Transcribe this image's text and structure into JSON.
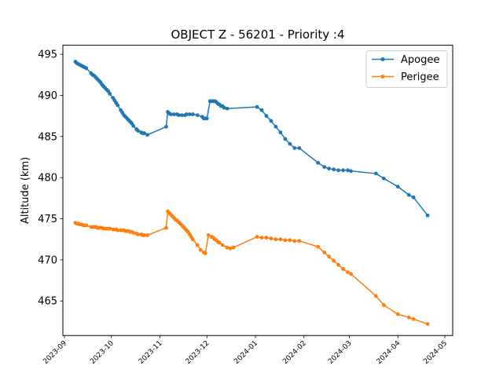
{
  "chart_data": {
    "type": "line",
    "title": "OBJECT Z - 56201 - Priority :4",
    "xlabel": "",
    "ylabel": "Altitude (km)",
    "xlim": [
      "2023-08-31",
      "2024-05-06"
    ],
    "ylim": [
      460.8,
      496.1
    ],
    "grid": false,
    "legend_position": "top-right",
    "x_ticks": [
      "2023-09",
      "2023-10",
      "2023-11",
      "2023-12",
      "2024-01",
      "2024-02",
      "2024-03",
      "2024-04",
      "2024-05"
    ],
    "y_ticks": [
      465,
      470,
      475,
      480,
      485,
      490,
      495
    ],
    "series": [
      {
        "name": "Apogee",
        "color": "#1f77b4",
        "x": [
          "2023-09-08",
          "2023-09-09",
          "2023-09-10",
          "2023-09-11",
          "2023-09-12",
          "2023-09-13",
          "2023-09-14",
          "2023-09-15",
          "2023-09-18",
          "2023-09-19",
          "2023-09-20",
          "2023-09-21",
          "2023-09-22",
          "2023-09-23",
          "2023-09-24",
          "2023-09-25",
          "2023-09-26",
          "2023-09-27",
          "2023-09-28",
          "2023-09-29",
          "2023-09-30",
          "2023-10-02",
          "2023-10-03",
          "2023-10-04",
          "2023-10-05",
          "2023-10-07",
          "2023-10-08",
          "2023-10-09",
          "2023-10-10",
          "2023-10-11",
          "2023-10-12",
          "2023-10-13",
          "2023-10-14",
          "2023-10-15",
          "2023-10-17",
          "2023-10-18",
          "2023-10-20",
          "2023-10-21",
          "2023-10-22",
          "2023-10-24",
          "2023-11-05",
          "2023-11-06",
          "2023-11-07",
          "2023-11-08",
          "2023-11-10",
          "2023-11-12",
          "2023-11-13",
          "2023-11-15",
          "2023-11-17",
          "2023-11-18",
          "2023-11-20",
          "2023-11-22",
          "2023-11-25",
          "2023-11-28",
          "2023-11-29",
          "2023-11-30",
          "2023-12-01",
          "2023-12-03",
          "2023-12-04",
          "2023-12-05",
          "2023-12-06",
          "2023-12-07",
          "2023-12-08",
          "2023-12-09",
          "2023-12-10",
          "2023-12-11",
          "2023-12-12",
          "2023-12-14",
          "2024-01-02",
          "2024-01-05",
          "2024-01-08",
          "2024-01-11",
          "2024-01-14",
          "2024-01-17",
          "2024-01-20",
          "2024-01-23",
          "2024-01-26",
          "2024-01-29",
          "2024-02-10",
          "2024-02-14",
          "2024-02-17",
          "2024-02-20",
          "2024-02-23",
          "2024-02-26",
          "2024-02-29",
          "2024-03-02",
          "2024-03-18",
          "2024-03-23",
          "2024-04-01",
          "2024-04-08",
          "2024-04-11",
          "2024-04-20"
        ],
        "values": [
          494.1,
          493.9,
          493.8,
          493.7,
          493.6,
          493.5,
          493.4,
          493.3,
          492.7,
          492.5,
          492.4,
          492.2,
          492.0,
          491.8,
          491.6,
          491.3,
          491.1,
          490.9,
          490.7,
          490.5,
          490.2,
          489.7,
          489.4,
          489.1,
          488.8,
          488.2,
          487.9,
          487.6,
          487.4,
          487.2,
          487.0,
          486.8,
          486.6,
          486.3,
          485.9,
          485.7,
          485.5,
          485.4,
          485.4,
          485.2,
          486.2,
          488.0,
          487.8,
          487.7,
          487.7,
          487.7,
          487.6,
          487.6,
          487.6,
          487.7,
          487.7,
          487.7,
          487.6,
          487.4,
          487.2,
          487.2,
          487.2,
          489.3,
          489.3,
          489.3,
          489.3,
          489.2,
          489.0,
          488.9,
          488.7,
          488.7,
          488.5,
          488.4,
          488.6,
          488.2,
          487.5,
          486.9,
          486.2,
          485.5,
          484.7,
          484.1,
          483.6,
          483.6,
          481.8,
          481.3,
          481.1,
          481.0,
          480.9,
          480.9,
          480.9,
          480.8,
          480.5,
          479.9,
          478.9,
          477.9,
          477.6,
          475.4
        ]
      },
      {
        "name": "Perigee",
        "color": "#ff7f0e",
        "x": [
          "2023-09-08",
          "2023-09-09",
          "2023-09-10",
          "2023-09-11",
          "2023-09-12",
          "2023-09-13",
          "2023-09-14",
          "2023-09-15",
          "2023-09-18",
          "2023-09-19",
          "2023-09-20",
          "2023-09-21",
          "2023-09-22",
          "2023-09-23",
          "2023-09-24",
          "2023-09-25",
          "2023-09-26",
          "2023-09-27",
          "2023-09-28",
          "2023-09-29",
          "2023-09-30",
          "2023-10-02",
          "2023-10-03",
          "2023-10-04",
          "2023-10-05",
          "2023-10-07",
          "2023-10-08",
          "2023-10-09",
          "2023-10-10",
          "2023-10-11",
          "2023-10-12",
          "2023-10-13",
          "2023-10-14",
          "2023-10-15",
          "2023-10-17",
          "2023-10-18",
          "2023-10-20",
          "2023-10-21",
          "2023-10-22",
          "2023-10-24",
          "2023-11-05",
          "2023-11-06",
          "2023-11-07",
          "2023-11-08",
          "2023-11-09",
          "2023-11-10",
          "2023-11-11",
          "2023-11-12",
          "2023-11-13",
          "2023-11-14",
          "2023-11-15",
          "2023-11-16",
          "2023-11-17",
          "2023-11-18",
          "2023-11-19",
          "2023-11-20",
          "2023-11-21",
          "2023-11-22",
          "2023-11-25",
          "2023-11-27",
          "2023-11-29",
          "2023-11-30",
          "2023-12-02",
          "2023-12-04",
          "2023-12-05",
          "2023-12-06",
          "2023-12-07",
          "2023-12-08",
          "2023-12-09",
          "2023-12-11",
          "2023-12-14",
          "2023-12-16",
          "2023-12-18",
          "2024-01-02",
          "2024-01-05",
          "2024-01-08",
          "2024-01-11",
          "2024-01-14",
          "2024-01-17",
          "2024-01-20",
          "2024-01-23",
          "2024-01-26",
          "2024-01-29",
          "2024-02-10",
          "2024-02-14",
          "2024-02-17",
          "2024-02-20",
          "2024-02-23",
          "2024-02-26",
          "2024-02-29",
          "2024-03-02",
          "2024-03-18",
          "2024-03-23",
          "2024-04-01",
          "2024-04-08",
          "2024-04-11",
          "2024-04-20"
        ],
        "values": [
          474.5,
          474.4,
          474.4,
          474.3,
          474.3,
          474.2,
          474.2,
          474.2,
          474.0,
          474.0,
          474.0,
          474.0,
          473.9,
          473.9,
          473.9,
          473.9,
          473.8,
          473.8,
          473.8,
          473.8,
          473.8,
          473.7,
          473.7,
          473.7,
          473.6,
          473.6,
          473.6,
          473.6,
          473.5,
          473.5,
          473.5,
          473.4,
          473.4,
          473.3,
          473.2,
          473.1,
          473.1,
          473.0,
          473.0,
          473.0,
          473.9,
          475.9,
          475.7,
          475.5,
          475.3,
          475.1,
          474.9,
          474.8,
          474.6,
          474.4,
          474.2,
          474.0,
          473.8,
          473.6,
          473.4,
          473.1,
          472.8,
          472.5,
          471.8,
          471.2,
          470.9,
          470.8,
          473.0,
          472.8,
          472.7,
          472.5,
          472.4,
          472.2,
          472.1,
          471.8,
          471.5,
          471.4,
          471.5,
          472.8,
          472.7,
          472.7,
          472.6,
          472.5,
          472.5,
          472.4,
          472.4,
          472.3,
          472.3,
          471.6,
          470.9,
          470.4,
          469.9,
          469.4,
          468.9,
          468.5,
          468.3,
          465.6,
          464.5,
          463.4,
          463.0,
          462.8,
          462.2
        ]
      }
    ]
  }
}
